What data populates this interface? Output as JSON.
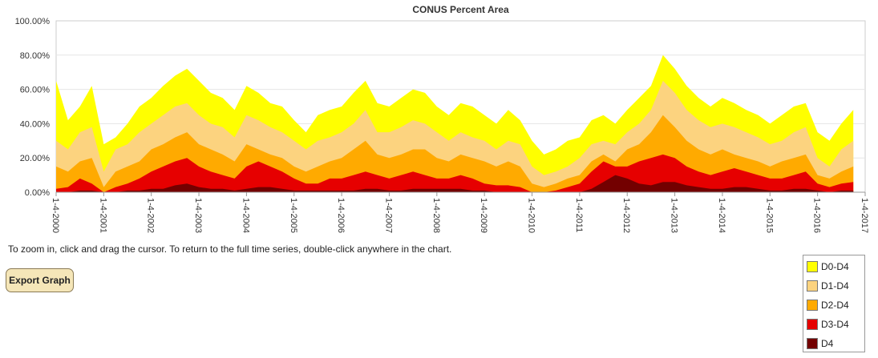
{
  "chart_data": {
    "type": "area",
    "title": "CONUS Percent Area",
    "ylim": [
      0,
      100
    ],
    "y_ticks": [
      "0.00%",
      "20.00%",
      "40.00%",
      "60.00%",
      "80.00%",
      "100.00%"
    ],
    "x_ticks": [
      "1-4-2000",
      "1-4-2001",
      "1-4-2002",
      "1-4-2003",
      "1-4-2004",
      "1-4-2005",
      "1-4-2006",
      "1-4-2007",
      "1-4-2008",
      "1-4-2009",
      "1-4-2010",
      "1-4-2011",
      "1-4-2012",
      "1-4-2013",
      "1-4-2014",
      "1-4-2015",
      "1-4-2016",
      "1-4-2017"
    ],
    "x": [
      2000.0,
      2000.25,
      2000.5,
      2000.75,
      2001.0,
      2001.25,
      2001.5,
      2001.75,
      2002.0,
      2002.25,
      2002.5,
      2002.75,
      2003.0,
      2003.25,
      2003.5,
      2003.75,
      2004.0,
      2004.25,
      2004.5,
      2004.75,
      2005.0,
      2005.25,
      2005.5,
      2005.75,
      2006.0,
      2006.25,
      2006.5,
      2006.75,
      2007.0,
      2007.25,
      2007.5,
      2007.75,
      2008.0,
      2008.25,
      2008.5,
      2008.75,
      2009.0,
      2009.25,
      2009.5,
      2009.75,
      2010.0,
      2010.25,
      2010.5,
      2010.75,
      2011.0,
      2011.25,
      2011.5,
      2011.75,
      2012.0,
      2012.25,
      2012.5,
      2012.75,
      2013.0,
      2013.25,
      2013.5,
      2013.75,
      2014.0,
      2014.25,
      2014.5,
      2014.75,
      2015.0,
      2015.25,
      2015.5,
      2015.75,
      2016.0,
      2016.25,
      2016.5,
      2016.75
    ],
    "series": [
      {
        "name": "D0-D4",
        "color": "#ffff00",
        "values": [
          65,
          42,
          50,
          62,
          28,
          32,
          40,
          50,
          55,
          62,
          68,
          72,
          65,
          58,
          55,
          48,
          62,
          58,
          52,
          50,
          42,
          35,
          45,
          48,
          50,
          58,
          65,
          52,
          50,
          55,
          60,
          58,
          50,
          45,
          52,
          50,
          45,
          40,
          48,
          42,
          30,
          22,
          25,
          30,
          32,
          42,
          45,
          40,
          48,
          55,
          62,
          80,
          72,
          62,
          55,
          50,
          55,
          52,
          48,
          45,
          40,
          45,
          50,
          52,
          35,
          30,
          40,
          48
        ]
      },
      {
        "name": "D1-D4",
        "color": "#fcd37f",
        "values": [
          30,
          25,
          35,
          38,
          12,
          25,
          28,
          35,
          40,
          45,
          50,
          52,
          45,
          40,
          38,
          32,
          45,
          42,
          38,
          35,
          30,
          25,
          30,
          32,
          35,
          40,
          48,
          35,
          35,
          38,
          42,
          40,
          35,
          30,
          35,
          32,
          30,
          25,
          30,
          28,
          15,
          10,
          12,
          15,
          20,
          28,
          30,
          28,
          35,
          40,
          48,
          65,
          58,
          48,
          42,
          38,
          40,
          38,
          35,
          32,
          28,
          30,
          35,
          38,
          20,
          15,
          25,
          30
        ]
      },
      {
        "name": "D2-D4",
        "color": "#ffaa00",
        "values": [
          15,
          12,
          18,
          20,
          3,
          12,
          15,
          18,
          25,
          28,
          32,
          35,
          28,
          25,
          22,
          18,
          28,
          25,
          22,
          20,
          15,
          12,
          15,
          18,
          20,
          25,
          30,
          22,
          20,
          22,
          25,
          25,
          20,
          18,
          22,
          20,
          18,
          15,
          18,
          15,
          5,
          3,
          5,
          8,
          10,
          18,
          22,
          18,
          25,
          28,
          35,
          45,
          38,
          30,
          25,
          22,
          25,
          22,
          20,
          18,
          15,
          18,
          20,
          22,
          10,
          8,
          12,
          15
        ]
      },
      {
        "name": "D3-D4",
        "color": "#e60000",
        "values": [
          2,
          3,
          8,
          5,
          0,
          3,
          5,
          8,
          12,
          15,
          18,
          20,
          15,
          12,
          10,
          8,
          15,
          18,
          15,
          12,
          8,
          5,
          5,
          8,
          8,
          10,
          12,
          10,
          8,
          10,
          12,
          10,
          8,
          8,
          10,
          8,
          5,
          4,
          4,
          3,
          0,
          0,
          1,
          3,
          5,
          12,
          18,
          15,
          15,
          18,
          20,
          22,
          20,
          15,
          12,
          10,
          12,
          14,
          12,
          10,
          8,
          8,
          10,
          12,
          5,
          3,
          5,
          6
        ]
      },
      {
        "name": "D4",
        "color": "#730000",
        "values": [
          0,
          0,
          1,
          1,
          0,
          0,
          1,
          1,
          2,
          2,
          4,
          5,
          3,
          2,
          2,
          1,
          2,
          3,
          3,
          2,
          1,
          1,
          1,
          1,
          1,
          1,
          2,
          2,
          1,
          1,
          2,
          2,
          2,
          2,
          2,
          1,
          1,
          0,
          0,
          0,
          0,
          0,
          0,
          0,
          0,
          2,
          6,
          10,
          8,
          5,
          4,
          6,
          6,
          4,
          3,
          2,
          2,
          3,
          3,
          2,
          1,
          1,
          2,
          2,
          1,
          0,
          1,
          1
        ]
      }
    ]
  },
  "hint": "To zoom in, click and drag the cursor. To return to the full time series, double-click anywhere in the chart.",
  "export_label": "Export Graph"
}
